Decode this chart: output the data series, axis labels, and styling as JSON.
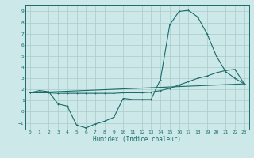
{
  "title": "",
  "xlabel": "Humidex (Indice chaleur)",
  "background_color": "#cce8e8",
  "grid_color": "#aacccc",
  "line_color": "#1a6b6b",
  "xlim": [
    -0.5,
    23.5
  ],
  "ylim": [
    -1.6,
    9.6
  ],
  "xticks": [
    0,
    1,
    2,
    3,
    4,
    5,
    6,
    7,
    8,
    9,
    10,
    11,
    12,
    13,
    14,
    15,
    16,
    17,
    18,
    19,
    20,
    21,
    22,
    23
  ],
  "yticks": [
    -1,
    0,
    1,
    2,
    3,
    4,
    5,
    6,
    7,
    8,
    9
  ],
  "line1_x": [
    0,
    1,
    2,
    3,
    4,
    5,
    6,
    7,
    8,
    9,
    10,
    11,
    12,
    13,
    14,
    15,
    16,
    17,
    18,
    19,
    20,
    21,
    22,
    23
  ],
  "line1_y": [
    1.7,
    1.9,
    1.8,
    0.7,
    0.5,
    -1.2,
    -1.45,
    -1.1,
    -0.85,
    -0.5,
    1.2,
    1.1,
    1.1,
    1.1,
    2.9,
    7.8,
    9.0,
    9.1,
    8.5,
    7.0,
    5.0,
    3.6,
    3.0,
    2.5
  ],
  "line2_x": [
    0,
    1,
    2,
    3,
    4,
    5,
    6,
    7,
    8,
    9,
    10,
    11,
    12,
    13,
    14,
    15,
    16,
    17,
    18,
    19,
    20,
    21,
    22,
    23
  ],
  "line2_y": [
    1.7,
    1.7,
    1.7,
    1.65,
    1.65,
    1.65,
    1.65,
    1.65,
    1.65,
    1.65,
    1.7,
    1.7,
    1.7,
    1.75,
    1.9,
    2.1,
    2.4,
    2.7,
    3.0,
    3.2,
    3.5,
    3.7,
    3.8,
    2.5
  ],
  "line3_x": [
    0,
    23
  ],
  "line3_y": [
    1.7,
    2.5
  ]
}
